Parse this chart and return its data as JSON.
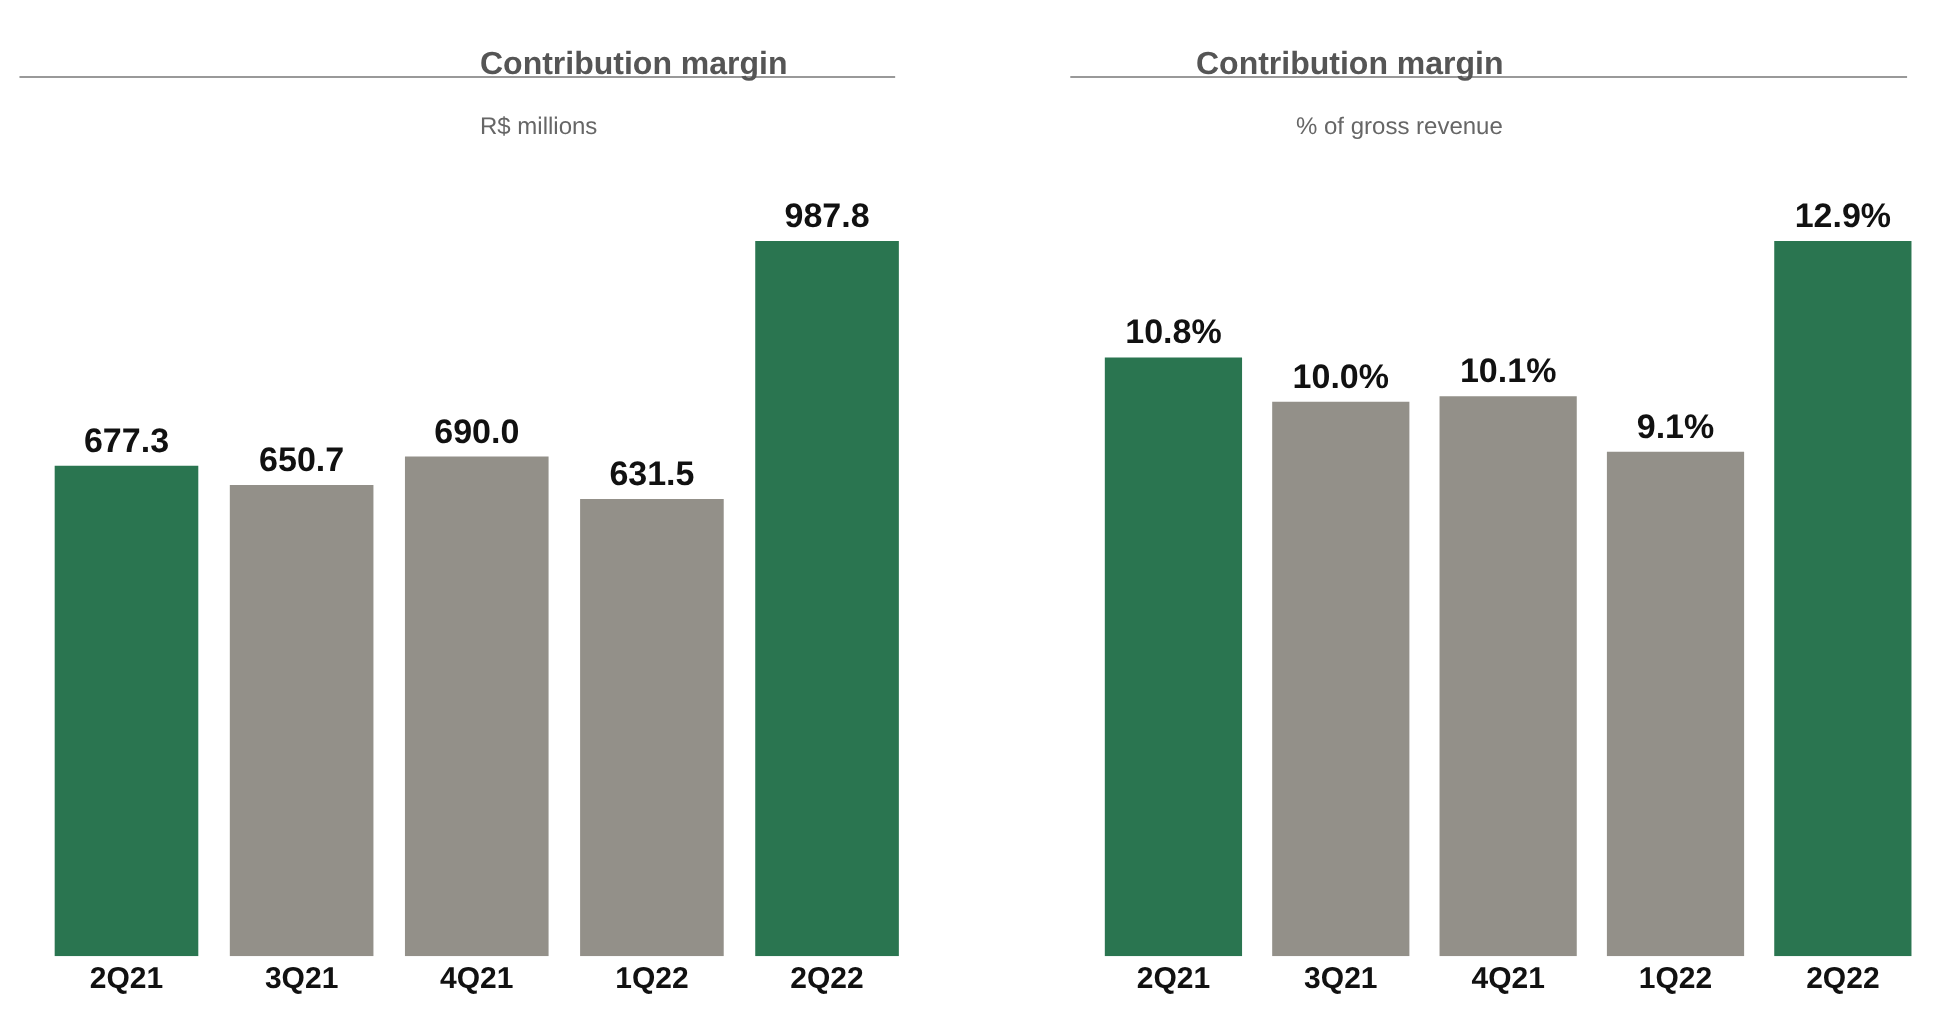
{
  "chart_data": [
    {
      "type": "bar",
      "title": "Contribution margin",
      "subtitle": "R$ millions",
      "categories": [
        "2Q21",
        "3Q21",
        "4Q21",
        "1Q22",
        "2Q22"
      ],
      "values": [
        677.3,
        650.7,
        690.0,
        631.5,
        987.8
      ],
      "value_labels": [
        "677.3",
        "650.7",
        "690.0",
        "631.5",
        "987.8"
      ],
      "colors": [
        "#2a7550",
        "#939089",
        "#939089",
        "#939089",
        "#2a7550"
      ]
    },
    {
      "type": "bar",
      "title": "Contribution margin",
      "subtitle": "% of gross revenue",
      "categories": [
        "2Q21",
        "3Q21",
        "4Q21",
        "1Q22",
        "2Q22"
      ],
      "values": [
        10.8,
        10.0,
        10.1,
        9.1,
        12.9
      ],
      "value_labels": [
        "10.8%",
        "10.0%",
        "10.1%",
        "9.1%",
        "12.9%"
      ],
      "colors": [
        "#2a7550",
        "#939089",
        "#939089",
        "#939089",
        "#2a7550"
      ]
    }
  ]
}
